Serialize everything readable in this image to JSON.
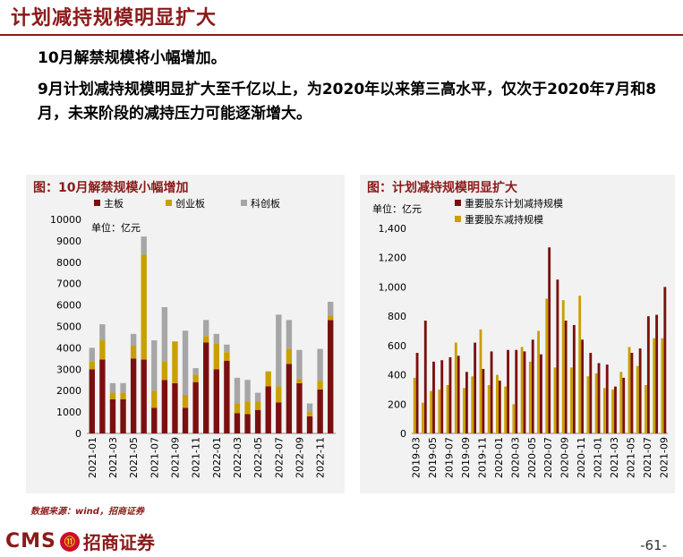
{
  "header": {
    "title": "计划减持规模明显扩大",
    "line1": "10月解禁规模将小幅增加。",
    "line2": "9月计划减持规模明显扩大至千亿以上，为2020年以来第三高水平，仅次于2020年7月和8月，未来阶段的减持压力可能逐渐增大。"
  },
  "footer": {
    "source": "数据来源：wind，招商证券",
    "logo_text": "CMS",
    "logo_circle": "⑪",
    "logo_cn": "招商证券",
    "page": "-61-"
  },
  "colors": {
    "main": "#7b0f0f",
    "gem": "#c9a000",
    "star": "#a6a6a6",
    "brand": "#8b1a1a"
  },
  "chart_data": [
    {
      "type": "bar",
      "stacked": true,
      "title": "图：10月解禁规模小幅增加",
      "unit": "单位：亿元",
      "ylim": [
        0,
        10000
      ],
      "yticks": [
        0,
        1000,
        2000,
        3000,
        4000,
        5000,
        6000,
        7000,
        8000,
        9000,
        10000
      ],
      "ytick_labels": [
        "0",
        "1000",
        "2000",
        "3000",
        "4000",
        "5000",
        "6000",
        "7000",
        "8000",
        "9000",
        "10000"
      ],
      "categories": [
        "2021-01",
        "2021-02",
        "2021-03",
        "2021-04",
        "2021-05",
        "2021-06",
        "2021-07",
        "2021-08",
        "2021-09",
        "2021-10",
        "2021-11",
        "2021-12",
        "2022-01",
        "2022-02",
        "2022-03",
        "2022-04",
        "2022-05",
        "2022-06",
        "2022-07",
        "2022-08",
        "2022-09",
        "2022-10",
        "2022-11",
        "2022-12"
      ],
      "xtick_labels": [
        "2021-01",
        "2021-03",
        "2021-05",
        "2021-07",
        "2021-09",
        "2021-11",
        "2022-01",
        "2022-03",
        "2022-05",
        "2022-07",
        "2022-09",
        "2022-11"
      ],
      "series": [
        {
          "name": "主板",
          "color": "#7b0f0f",
          "values": [
            3000,
            3450,
            1600,
            1600,
            3500,
            3450,
            1200,
            2500,
            2350,
            1200,
            2400,
            4250,
            3000,
            3400,
            950,
            900,
            1100,
            2200,
            1450,
            3250,
            2350,
            800,
            2050,
            5300
          ]
        },
        {
          "name": "创业板",
          "color": "#c9a000",
          "values": [
            350,
            900,
            300,
            300,
            600,
            4900,
            800,
            850,
            1950,
            600,
            350,
            300,
            1200,
            400,
            450,
            600,
            400,
            700,
            750,
            700,
            200,
            200,
            400,
            200
          ]
        },
        {
          "name": "科创板",
          "color": "#a6a6a6",
          "values": [
            650,
            750,
            450,
            450,
            550,
            850,
            2350,
            2550,
            0,
            3000,
            300,
            750,
            450,
            350,
            1200,
            1000,
            400,
            0,
            3350,
            1350,
            1350,
            400,
            1500,
            650
          ]
        }
      ]
    },
    {
      "type": "bar",
      "title": "图：计划减持规模明显扩大",
      "unit": "单位：亿元",
      "ylim": [
        0,
        1400
      ],
      "yticks": [
        0,
        200,
        400,
        600,
        800,
        1000,
        1200,
        1400
      ],
      "ytick_labels": [
        "0",
        "200",
        "400",
        "600",
        "800",
        "1,000",
        "1,200",
        "1,400"
      ],
      "categories": [
        "2019-03",
        "2019-04",
        "2019-05",
        "2019-06",
        "2019-07",
        "2019-08",
        "2019-09",
        "2019-10",
        "2019-11",
        "2019-12",
        "2020-01",
        "2020-02",
        "2020-03",
        "2020-04",
        "2020-05",
        "2020-06",
        "2020-07",
        "2020-08",
        "2020-09",
        "2020-10",
        "2020-11",
        "2020-12",
        "2021-01",
        "2021-02",
        "2021-03",
        "2021-04",
        "2021-05",
        "2021-06",
        "2021-07",
        "2021-08",
        "2021-09"
      ],
      "xtick_labels": [
        "2019-03",
        "2019-05",
        "2019-07",
        "2019-09",
        "2019-11",
        "2020-01",
        "2020-03",
        "2020-05",
        "2020-07",
        "2020-09",
        "2020-11",
        "2021-01",
        "2021-03",
        "2021-05",
        "2021-07",
        "2021-09"
      ],
      "series": [
        {
          "name": "重要股东计划减持规模",
          "color": "#7b0f0f",
          "values": [
            550,
            770,
            490,
            500,
            520,
            530,
            420,
            620,
            440,
            560,
            360,
            570,
            570,
            560,
            640,
            540,
            1270,
            1050,
            770,
            740,
            640,
            550,
            480,
            470,
            320,
            380,
            550,
            580,
            800,
            810,
            1000
          ]
        },
        {
          "name": "重要股东减持规模",
          "color": "#c9a000",
          "values": [
            380,
            210,
            290,
            300,
            330,
            620,
            310,
            390,
            710,
            330,
            400,
            320,
            200,
            590,
            490,
            700,
            920,
            450,
            910,
            450,
            940,
            390,
            410,
            310,
            300,
            420,
            590,
            460,
            330,
            650,
            650
          ]
        }
      ]
    }
  ]
}
